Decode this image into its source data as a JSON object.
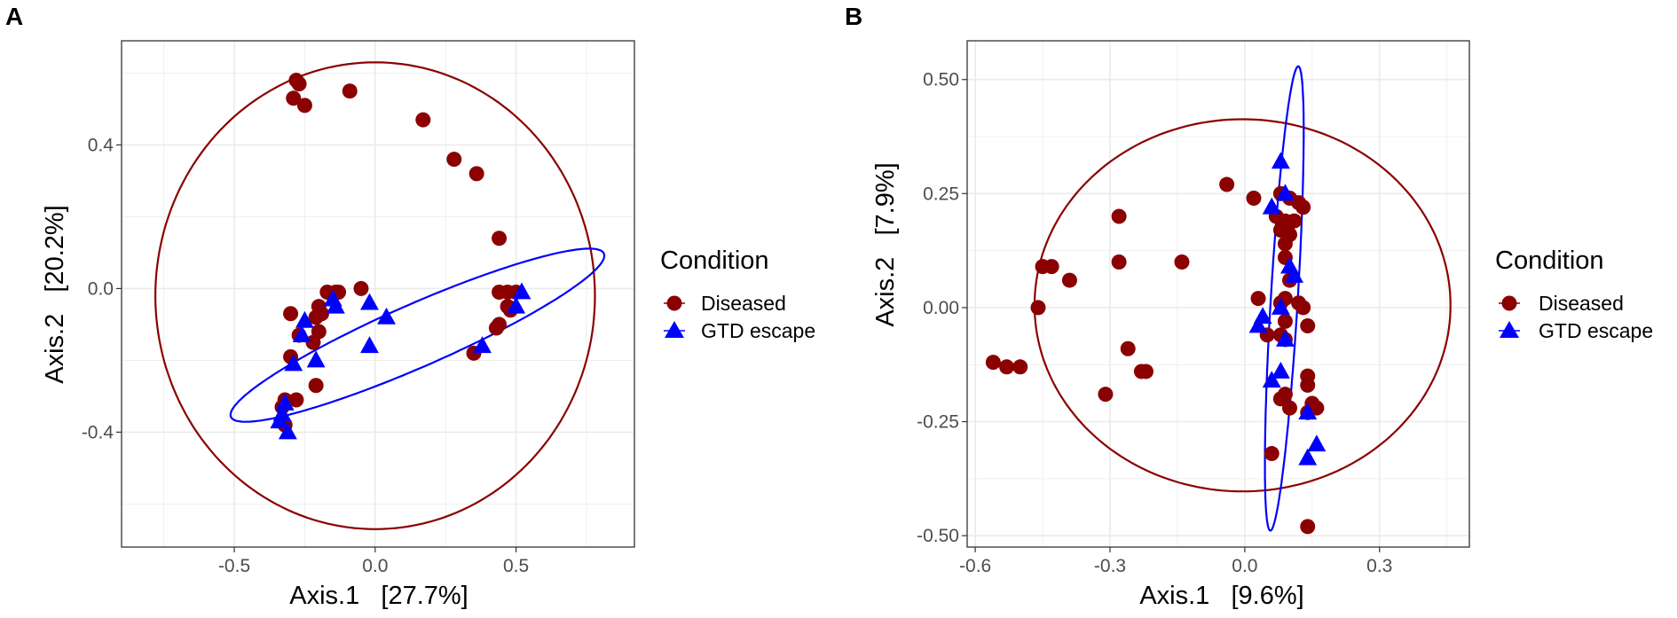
{
  "colors": {
    "diseased": "#8b0000",
    "gtd": "#0000ff",
    "grid": "#ebebeb",
    "frame": "#333333"
  },
  "chart_data": [
    {
      "type": "scatter",
      "panel": "A",
      "title": "",
      "xlabel": "Axis.1   [27.7%]",
      "ylabel": "Axis.2   [20.2%]",
      "xlim": [
        -0.9,
        0.92
      ],
      "ylim": [
        -0.72,
        0.69
      ],
      "xticks": [
        -0.5,
        0.0,
        0.5
      ],
      "xtick_labels": [
        "-0.5",
        "0.0",
        "0.5"
      ],
      "yticks": [
        -0.4,
        0.0,
        0.4
      ],
      "ytick_labels": [
        "-0.4",
        "0.0",
        "0.4"
      ],
      "grid": true,
      "legend": {
        "title": "Condition",
        "position": "right",
        "entries": [
          "Diseased",
          "GTD escape"
        ]
      },
      "series": [
        {
          "name": "Diseased",
          "marker": "circle",
          "x": [
            -0.28,
            -0.27,
            -0.29,
            -0.25,
            -0.09,
            0.17,
            0.28,
            0.36,
            0.44,
            -0.17,
            -0.14,
            -0.05,
            0.44,
            0.47,
            0.5,
            0.47,
            0.48,
            0.44,
            0.43,
            0.35,
            -0.2,
            -0.19,
            -0.21,
            -0.2,
            -0.22,
            -0.27,
            -0.3,
            -0.3,
            -0.21,
            -0.32,
            -0.33,
            -0.32,
            -0.28,
            -0.13
          ],
          "y": [
            0.58,
            0.57,
            0.53,
            0.51,
            0.55,
            0.47,
            0.36,
            0.32,
            0.14,
            -0.01,
            -0.01,
            0.0,
            -0.01,
            -0.01,
            -0.01,
            -0.05,
            -0.06,
            -0.1,
            -0.11,
            -0.18,
            -0.05,
            -0.07,
            -0.08,
            -0.12,
            -0.15,
            -0.13,
            -0.07,
            -0.19,
            -0.27,
            -0.31,
            -0.33,
            -0.38,
            -0.31,
            -0.01
          ]
        },
        {
          "name": "GTD escape",
          "marker": "triangle",
          "x": [
            -0.15,
            -0.14,
            -0.02,
            0.04,
            -0.02,
            -0.25,
            -0.26,
            -0.21,
            -0.29,
            -0.32,
            -0.33,
            -0.34,
            -0.31,
            0.38,
            0.5,
            0.52
          ],
          "y": [
            -0.03,
            -0.05,
            -0.04,
            -0.08,
            -0.16,
            -0.09,
            -0.13,
            -0.2,
            -0.21,
            -0.32,
            -0.35,
            -0.37,
            -0.4,
            -0.16,
            -0.05,
            -0.01
          ]
        }
      ],
      "ellipses": [
        {
          "series": "Diseased",
          "cx": 0.0,
          "cy": -0.02,
          "rx": 0.78,
          "ry": 0.65,
          "angle": 0
        },
        {
          "series": "GTD escape",
          "cx": 0.15,
          "cy": -0.13,
          "rx": 0.7,
          "ry": 0.09,
          "angle": 18.8
        }
      ]
    },
    {
      "type": "scatter",
      "panel": "B",
      "title": "",
      "xlabel": "Axis.1   [9.6%]",
      "ylabel": "Axis.2   [7.9%]",
      "xlim": [
        -0.618,
        0.5
      ],
      "ylim": [
        -0.525,
        0.585
      ],
      "xticks": [
        -0.6,
        -0.3,
        0.0,
        0.3
      ],
      "xtick_labels": [
        "-0.6",
        "-0.3",
        "0.0",
        "0.3"
      ],
      "yticks": [
        -0.5,
        -0.25,
        0.0,
        0.25,
        0.5
      ],
      "ytick_labels": [
        "-0.50",
        "-0.25",
        "0.00",
        "0.25",
        "0.50"
      ],
      "grid": true,
      "legend": {
        "title": "Condition",
        "position": "right",
        "entries": [
          "Diseased",
          "GTD escape"
        ]
      },
      "series": [
        {
          "name": "Diseased",
          "marker": "circle",
          "x": [
            -0.04,
            0.02,
            0.08,
            0.1,
            0.12,
            0.13,
            0.07,
            0.09,
            0.11,
            0.08,
            0.1,
            0.09,
            0.09,
            0.1,
            0.09,
            0.08,
            0.12,
            0.13,
            0.14,
            0.03,
            0.05,
            0.09,
            0.08,
            0.09,
            0.14,
            0.14,
            0.15,
            0.09,
            0.08,
            0.1,
            0.14,
            0.16,
            0.06,
            0.14,
            -0.28,
            -0.28,
            -0.14,
            -0.45,
            -0.43,
            -0.39,
            -0.46,
            -0.56,
            -0.53,
            -0.5,
            -0.26,
            -0.23,
            -0.22,
            -0.31
          ],
          "y": [
            0.27,
            0.24,
            0.25,
            0.24,
            0.23,
            0.22,
            0.2,
            0.19,
            0.19,
            0.17,
            0.16,
            0.14,
            0.11,
            0.06,
            0.02,
            0.01,
            0.01,
            0.0,
            -0.04,
            0.02,
            -0.06,
            -0.03,
            -0.06,
            -0.07,
            -0.15,
            -0.17,
            -0.21,
            -0.19,
            -0.2,
            -0.22,
            -0.23,
            -0.22,
            -0.32,
            -0.48,
            0.2,
            0.1,
            0.1,
            0.09,
            0.09,
            0.06,
            0.0,
            -0.12,
            -0.13,
            -0.13,
            -0.09,
            -0.14,
            -0.14,
            -0.19
          ]
        },
        {
          "name": "GTD escape",
          "marker": "triangle",
          "x": [
            0.08,
            0.09,
            0.06,
            0.1,
            0.11,
            0.08,
            0.04,
            0.03,
            0.09,
            0.08,
            0.06,
            0.14,
            0.16,
            0.14
          ],
          "y": [
            0.32,
            0.25,
            0.22,
            0.09,
            0.07,
            0.0,
            -0.02,
            -0.04,
            -0.07,
            -0.14,
            -0.16,
            -0.23,
            -0.3,
            -0.33
          ]
        }
      ],
      "ellipses": [
        {
          "series": "Diseased",
          "cx": -0.005,
          "cy": 0.005,
          "rx": 0.463,
          "ry": 0.408,
          "angle": 0
        },
        {
          "series": "GTD escape",
          "cx": 0.088,
          "cy": 0.02,
          "rx": 0.03,
          "ry": 0.51,
          "angle": -3.5
        }
      ]
    }
  ]
}
